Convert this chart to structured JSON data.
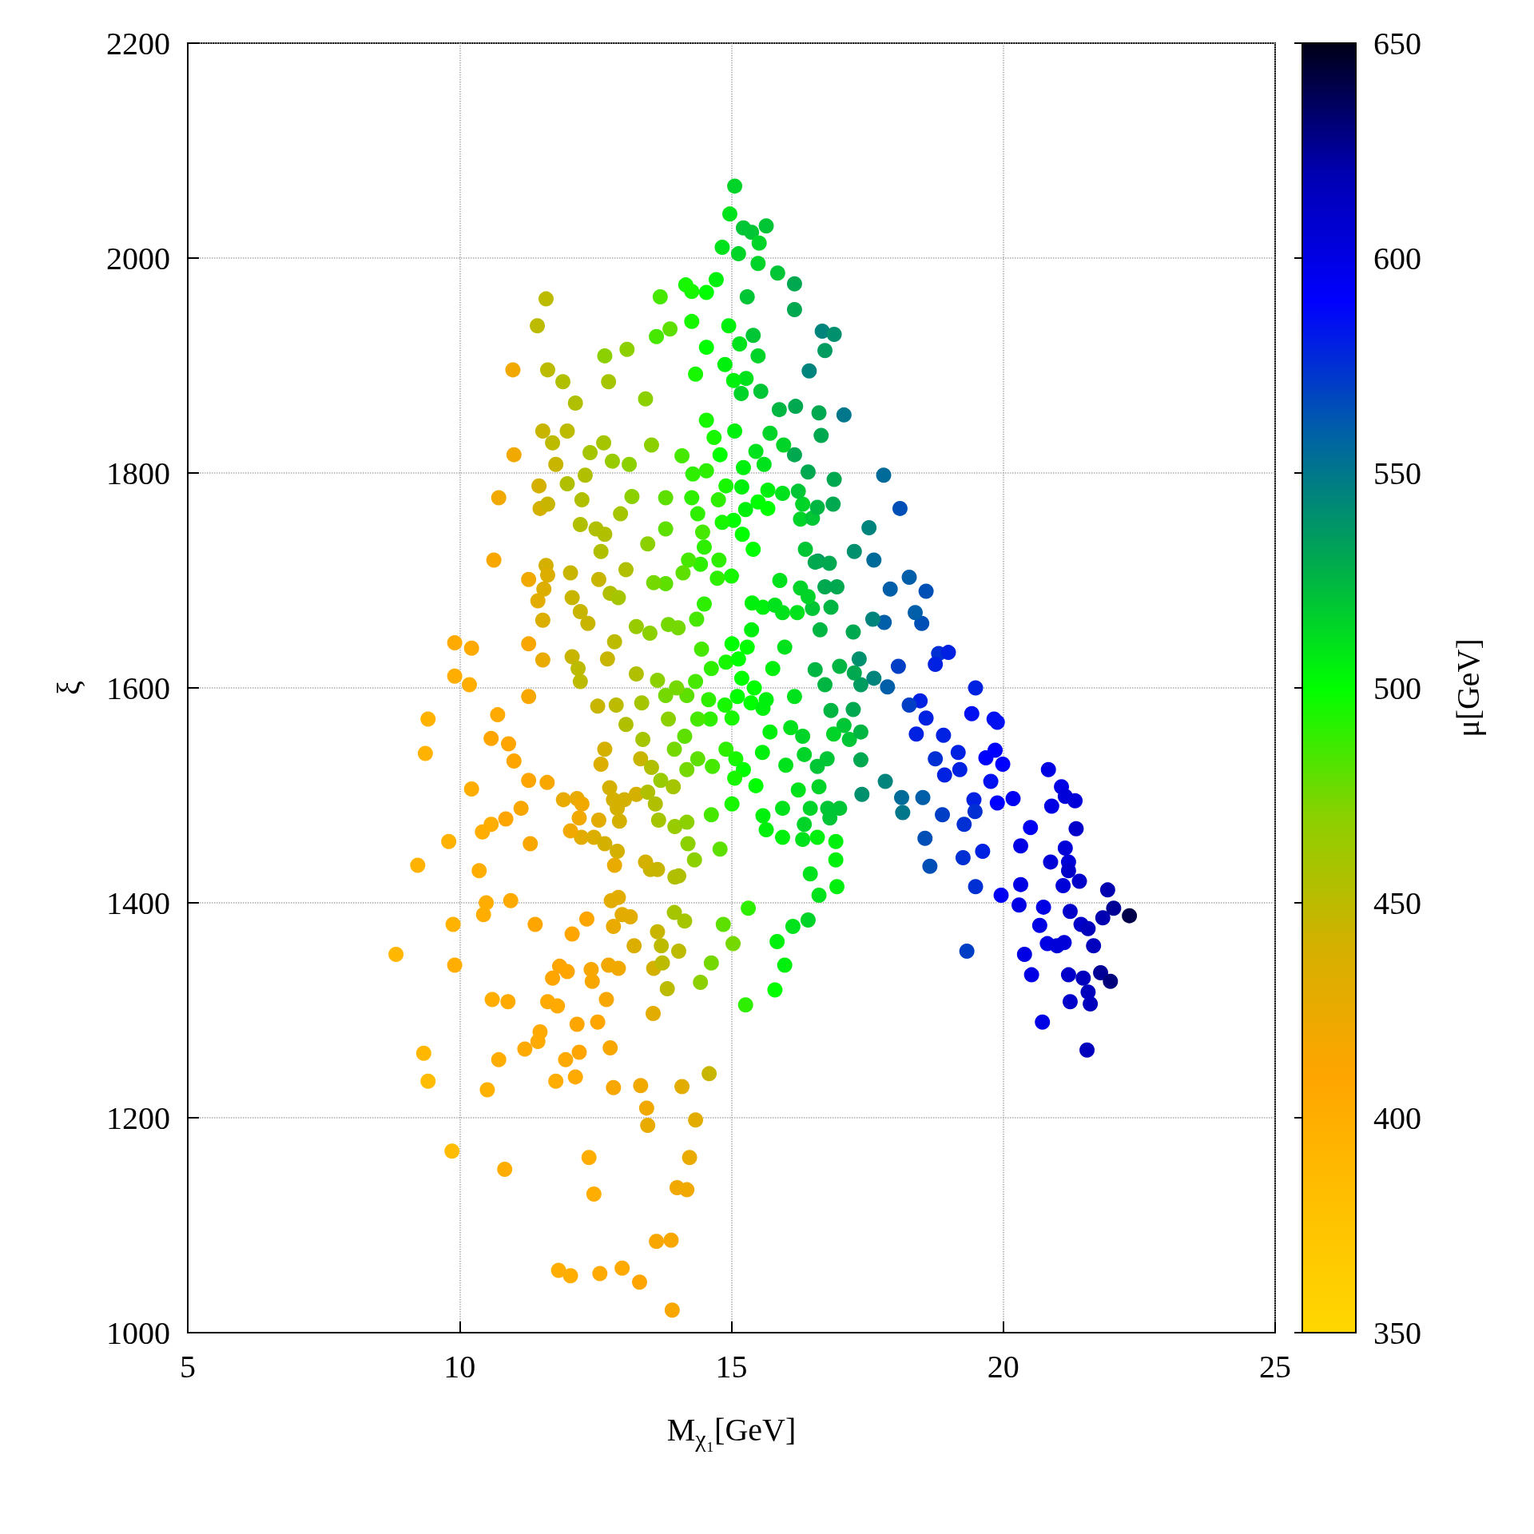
{
  "chart_data": {
    "type": "scatter",
    "xlabel": "M$_{χ₁}$[GeV]",
    "ylabel": "ξ",
    "clabel": "μ[GeV]",
    "xlim": [
      5,
      25
    ],
    "xticks": [
      5,
      10,
      15,
      20,
      25
    ],
    "ylim": [
      1000,
      2200
    ],
    "yticks": [
      1000,
      1200,
      1400,
      1600,
      1800,
      2000,
      2200
    ],
    "clim": [
      350,
      650
    ],
    "cticks": [
      350,
      400,
      450,
      500,
      550,
      600,
      650
    ],
    "grid": true,
    "marker": "circle",
    "x": [
      8.83,
      9.23,
      9.34,
      9.42,
      9.42,
      9.37,
      9.86,
      9.91,
      9.91,
      9.88,
      9.91,
      9.8,
      10.22,
      10.18,
      10.22,
      10.36,
      10.51,
      10.63,
      10.7,
      10.72,
      10.83,
      10.72,
      10.98,
      11.0,
      10.89,
      10.94,
      11.2,
      11.27,
      11.27,
      11.27,
      11.3,
      11.39,
      11.46,
      11.43,
      11.59,
      11.62,
      11.59,
      11.53,
      11.61,
      11.48,
      11.71,
      11.77,
      11.82,
      12.04,
      11.9,
      11.98,
      12.13,
      12.07,
      11.98,
      12.22,
      12.16,
      12.24,
      12.07,
      12.2,
      12.38,
      12.47,
      12.34,
      12.4,
      12.67,
      12.74,
      12.65,
      12.54,
      12.58,
      13.08,
      12.99,
      12.77,
      12.83,
      13.31,
      13.44,
      13.33,
      13.46,
      13.62,
      13.89,
      13.91,
      14.0,
      14.18,
      14.23,
      14.34,
      14.09,
      14.59,
      13.56,
      13.82,
      14.03,
      13.14,
      12.92,
      13.21,
      13.51,
      14.14,
      14.43,
      14.63,
      15.03,
      15.26,
      15.8,
      15.98,
      15.84,
      16.13,
      16.41,
      16.45,
      16.61,
      16.94,
      16.92,
      14.85,
      15.31,
      14.03,
      14.32,
      14.79,
      14.63,
      14.2,
      13.93,
      13.25,
      12.9,
      12.67,
      13.06,
      13.35,
      12.88,
      12.54,
      13.25,
      12.72,
      12.85,
      13.25,
      13.5,
      13.84,
      13.79,
      13.57,
      13.06,
      12.56,
      12.67,
      12.96,
      13.17,
      12.81,
      13.12,
      13.53,
      13.79,
      13.79,
      13.42,
      13.69,
      13.87,
      13.62,
      14.16,
      14.27,
      14.27,
      14.54,
      14.34,
      14.54,
      14.72,
      14.83,
      14.97,
      15.06,
      15.22,
      15.37,
      15.64,
      15.51,
      15.49,
      15.13,
      15.85,
      16.16,
      16.16,
      15.29,
      14.95,
      15.15,
      15.4,
      15.49,
      14.88,
      15.27,
      15.04,
      15.18,
      15.54,
      15.88,
      16.18,
      16.67,
      16.89,
      16.72,
      16.43,
      17.07,
      16.61,
      15.71,
      16.16,
      16.65,
      16.41,
      16.89,
      17.8,
      18.1,
      17.62,
      17.53,
      17.26,
      16.59,
      17.92,
      18.27,
      18.58,
      18.5,
      18.38,
      17.81,
      17.6,
      17.35,
      17.62,
      17.87,
      18.07,
      18.81,
      18.99,
      18.75,
      19.49,
      18.47,
      18.27,
      18.58,
      18.4,
      19.42,
      19.83,
      19.89,
      19.85,
      19.99,
      19.68,
      19.77,
      19.17,
      18.9,
      18.75,
      18.92,
      19.2,
      19.46,
      19.89,
      20.18,
      20.83,
      21.07,
      21.14,
      21.32,
      20.89,
      20.5,
      21.34,
      20.32,
      21.14,
      20.87,
      21.2,
      21.2,
      21.1,
      21.4,
      20.32,
      19.96,
      20.29,
      20.74,
      21.23,
      21.43,
      21.56,
      21.92,
      22.03,
      22.32,
      21.83,
      20.67,
      20.39,
      20.81,
      20.99,
      21.12,
      21.66,
      20.52,
      21.2,
      21.47,
      21.79,
      21.97,
      21.56,
      21.6,
      21.23,
      20.72,
      21.54,
      19.33,
      19.49,
      19.62,
      19.26,
      19.28,
      19.48,
      18.88,
      18.56,
      18.65,
      18.52,
      18.13,
      18.15,
      17.83,
      17.4,
      17.38,
      17.24,
      17.38,
      17.26,
      17.24,
      16.99,
      17.07,
      17.17,
      16.88,
      16.83,
      16.72,
      16.54,
      16.63,
      16.83,
      16.72,
      16.94,
      16.49,
      16.41,
      16.27,
      16.21,
      16.54,
      16.8,
      16.36,
      16.27,
      16.49,
      16.58,
      16.87,
      16.31,
      16.23,
      15.94,
      15.96,
      15.6,
      15.67,
      15.49,
      15.67,
      15.26,
      15.19,
      15.22,
      15.45,
      15.4,
      15.2,
      15.04,
      14.83,
      14.76,
      14.9,
      15.06,
      14.79,
      14.54,
      14.68,
      14.54,
      14.29,
      14.27,
      14.09,
      14.38,
      14.47,
      14.5,
      14.43,
      14.77,
      15.0,
      14.74,
      14.21,
      14.11,
      14.5,
      14.36,
      14.02,
      14.45,
      14.63,
      14.34,
      14.18,
      14.58,
      14.9,
      15.01,
      15.29,
      15.13,
      15.37,
      15.58,
      15.8,
      15.38,
      15.94,
      15.89,
      15.98,
      15.76,
      15.42,
      15.19,
      15.36,
      15.58,
      15.11,
      14.88,
      15.01,
      14.61,
      14.38,
      13.99,
      13.79,
      13.64,
      13.37,
      13.84,
      13.95,
      14.14,
      14.38,
      14.18,
      13.7,
      13.46,
      13.66,
      13.96,
      14.18,
      14.65,
      14.9,
      15.08,
      15.22,
      15.45,
      15.06,
      15.01,
      15.57,
      15.71,
      15.64,
      16.09,
      16.16,
      16.31,
      16.34,
      16.23,
      15.94,
      15.94,
      15.58,
      15.64,
      16.34,
      16.45,
      16.61,
      16.77,
      16.81,
      16.99,
      16.76,
      16.58,
      16.92,
      16.58,
      16.31,
      16.0,
      17.38,
      10.49,
      10.44,
      10.6,
      10.58,
      10.42,
      10.85,
      10.9,
      11.0,
      10.58,
      11.13,
      11.27,
      11.53,
      11.44,
      11.55,
      11.62,
      11.48,
      11.62,
      11.77,
      11.71,
      11.53,
      12.31,
      12.25,
      12.22,
      12.04,
      12.07,
      12.22,
      12.36,
      12.18,
      12.51,
      12.6,
      12.77,
      12.92,
      11.91,
      12.25,
      12.2,
      12.04,
      12.47,
      12.67,
      12.9,
      12.85,
      12.6,
      12.76,
      12.83,
      13.03,
      12.94,
      12.56,
      12.79,
      12.92,
      12.99,
      12.83,
      12.74,
      12.42,
      12.44,
      11.98,
      11.84,
      11.62,
      11.8,
      12.16,
      12.13,
      11.95,
      11.44,
      12.7,
      13.42,
      13.64,
      13.57,
      13.73,
      13.64,
      13.71,
      13.95,
      13.96,
      13.33,
      13.53,
      13.6,
      13.46
    ],
    "values": [
      1352,
      1435,
      1260,
      1234,
      1571,
      1539,
      1169,
      1642,
      1611,
      1380,
      1342,
      1457,
      1637,
      1603,
      1506,
      1430,
      1226,
      1719,
      1575,
      1254,
      1152,
      1777,
      1896,
      1817,
      1308,
      1402,
      1264,
      1701,
      1641,
      1514,
      1455,
      1380,
      1788,
      1937,
      1962,
      1896,
      1714,
      1626,
      1512,
      1280,
      1330,
      1234,
      1058,
      1053,
      1885,
      1839,
      1865,
      1629,
      1790,
      1606,
      1497,
      1461,
      1371,
      1261,
      1163,
      1129,
      1385,
      1819,
      1909,
      1885,
      1828,
      1289,
      1055,
      1915,
      1060,
      1265,
      1228,
      1047,
      1209,
      1230,
      1193,
      1085,
      1086,
      1021,
      1135,
      1133,
      1163,
      1198,
      1229,
      1241,
      1297,
      1320,
      1355,
      1387,
      1339,
      1360,
      1431,
      1383,
      1326,
      1344,
      1362,
      1305,
      1319,
      1342,
      1364,
      1378,
      1384,
      1427,
      1407,
      1415,
      1440,
      1380,
      1395,
      1425,
      1440,
      1450,
      1482,
      1455,
      1508,
      1501,
      1488,
      1543,
      1566,
      1586,
      1584,
      1583,
      1613,
      1627,
      1643,
      1657,
      1651,
      1659,
      1697,
      1698,
      1710,
      1701,
      1743,
      1762,
      1778,
      1811,
      1808,
      1826,
      1777,
      1748,
      1869,
      1964,
      1934,
      1927,
      1975,
      1969,
      1941,
      1968,
      1892,
      1917,
      1980,
      2010,
      2041,
      2067,
      2028,
      2024,
      2030,
      2014,
      1995,
      2004,
      1986,
      1976,
      1952,
      1964,
      1937,
      1920,
      1928,
      1909,
      1901,
      1888,
      1886,
      1874,
      1876,
      1859,
      1862,
      1932,
      1929,
      1914,
      1895,
      1854,
      1856,
      1837,
      1817,
      1835,
      1801,
      1794,
      1798,
      1767,
      1719,
      1749,
      1727,
      1718,
      1692,
      1703,
      1690,
      1660,
      1670,
      1661,
      1664,
      1627,
      1609,
      1601,
      1620,
      1632,
      1633,
      1622,
      1600,
      1588,
      1584,
      1572,
      1557,
      1576,
      1571,
      1568,
      1542,
      1529,
      1535,
      1513,
      1540,
      1556,
      1534,
      1519,
      1524,
      1496,
      1493,
      1497,
      1524,
      1508,
      1499,
      1495,
      1490,
      1470,
      1469,
      1453,
      1451,
      1438,
      1438,
      1430,
      1416,
      1420,
      1417,
      1407,
      1398,
      1396,
      1392,
      1380,
      1376,
      1412,
      1395,
      1388,
      1386,
      1379,
      1352,
      1362,
      1360,
      1363,
      1360,
      1333,
      1333,
      1330,
      1335,
      1327,
      1317,
      1306,
      1308,
      1289,
      1263,
      1355,
      1415,
      1448,
      1442,
      1473,
      1485,
      1482,
      1460,
      1434,
      1498,
      1498,
      1484,
      1513,
      1501,
      1533,
      1580,
      1603,
      1614,
      1652,
      1620,
      1565,
      1552,
      1557,
      1579,
      1603,
      1617,
      1654,
      1675,
      1694,
      1694,
      1674,
      1685,
      1693,
      1670,
      1717,
      1716,
      1729,
      1757,
      1758,
      1768,
      1771,
      1771,
      1783,
      1781,
      1826,
      1808,
      1784,
      1773,
      1767,
      1766,
      1787,
      1805,
      1820,
      1729,
      1743,
      1756,
      1754,
      1775,
      1788,
      1839,
      1817,
      1849,
      1833,
      1802,
      1799,
      1777,
      1816,
      1762,
      1745,
      1731,
      1715,
      1719,
      1704,
      1702,
      1719,
      1707,
      1678,
      1664,
      1656,
      1636,
      1618,
      1606,
      1593,
      1589,
      1624,
      1641,
      1638,
      1627,
      1654,
      1675,
      1677,
      1679,
      1670,
      1700,
      1638,
      1618,
      1600,
      1609,
      1586,
      1581,
      1592,
      1584,
      1572,
      1571,
      1571,
      1600,
      1593,
      1607,
      1552,
      1571,
      1543,
      1555,
      1534,
      1524,
      1514,
      1503,
      1477,
      1471,
      1475,
      1527,
      1543,
      1534,
      1524,
      1509,
      1516,
      1492,
      1540,
      1559,
      1589,
      1563,
      1592,
      1555,
      1538,
      1505,
      1488,
      1461,
      1481,
      1468,
      1473,
      1488,
      1508,
      1488,
      1479,
      1488,
      1534,
      1527,
      1457,
      1461,
      1459,
      1528,
      1559,
      1400,
      1389,
      1310,
      1473,
      1466,
      1478,
      1548,
      1532,
      1553,
      1488,
      1592,
      1663,
      1681,
      1692,
      1705,
      1767,
      1771,
      1808,
      1828,
      1839,
      1798,
      1775,
      1752,
      1707,
      1684,
      1671,
      1660,
      1618,
      1748,
      1727,
      1688,
      1684,
      1496,
      1492,
      1479,
      1467,
      1461,
      1455,
      1448,
      1435,
      1529,
      1507,
      1496,
      1496,
      1476,
      1477,
      1402,
      1405,
      1389,
      1378,
      1342,
      1338,
      1327,
      1336,
      1341,
      1308,
      1304,
      1287,
      1238,
      1254,
      1271,
      1310,
      1438,
      1431,
      1339,
      1344,
      1373,
      1360,
      1391,
      1424,
      1534,
      1526,
      1492,
      1734
    ],
    "cvalues": [
      390,
      395,
      390,
      385,
      395,
      395,
      385,
      405,
      400,
      395,
      400,
      395,
      405,
      400,
      400,
      400,
      395,
      415,
      405,
      400,
      400,
      420,
      420,
      420,
      405,
      405,
      405,
      420,
      415,
      410,
      415,
      410,
      440,
      450,
      450,
      450,
      440,
      425,
      415,
      405,
      410,
      400,
      400,
      400,
      455,
      450,
      455,
      445,
      455,
      450,
      425,
      430,
      410,
      410,
      400,
      400,
      410,
      460,
      470,
      460,
      460,
      410,
      405,
      470,
      405,
      415,
      415,
      410,
      420,
      420,
      425,
      415,
      415,
      415,
      420,
      420,
      425,
      430,
      430,
      445,
      430,
      450,
      450,
      430,
      420,
      435,
      445,
      460,
      470,
      475,
      475,
      490,
      500,
      505,
      505,
      510,
      515,
      510,
      510,
      505,
      505,
      480,
      490,
      455,
      470,
      480,
      485,
      470,
      460,
      440,
      440,
      440,
      455,
      460,
      450,
      445,
      455,
      445,
      450,
      465,
      470,
      475,
      480,
      475,
      455,
      445,
      455,
      460,
      470,
      465,
      470,
      470,
      480,
      480,
      470,
      485,
      480,
      485,
      495,
      495,
      495,
      500,
      495,
      500,
      505,
      510,
      510,
      515,
      520,
      520,
      520,
      515,
      515,
      515,
      520,
      530,
      530,
      520,
      505,
      510,
      520,
      515,
      505,
      510,
      505,
      515,
      520,
      525,
      530,
      545,
      540,
      535,
      545,
      550,
      530,
      515,
      530,
      530,
      530,
      530,
      555,
      565,
      555,
      545,
      540,
      535,
      560,
      560,
      565,
      565,
      560,
      560,
      545,
      540,
      545,
      560,
      570,
      575,
      580,
      580,
      580,
      580,
      570,
      580,
      580,
      585,
      585,
      585,
      590,
      590,
      590,
      585,
      580,
      580,
      575,
      580,
      580,
      580,
      590,
      595,
      600,
      600,
      605,
      605,
      600,
      595,
      610,
      600,
      605,
      605,
      605,
      610,
      605,
      610,
      600,
      595,
      600,
      600,
      610,
      610,
      615,
      620,
      625,
      640,
      620,
      600,
      600,
      600,
      605,
      605,
      615,
      600,
      610,
      615,
      625,
      630,
      615,
      615,
      610,
      600,
      615,
      570,
      575,
      580,
      575,
      575,
      575,
      570,
      565,
      565,
      560,
      555,
      550,
      545,
      540,
      530,
      530,
      535,
      530,
      530,
      525,
      520,
      520,
      515,
      525,
      525,
      525,
      525,
      525,
      530,
      530,
      520,
      515,
      515,
      510,
      530,
      530,
      520,
      515,
      520,
      525,
      530,
      515,
      520,
      510,
      515,
      510,
      505,
      500,
      500,
      505,
      505,
      505,
      510,
      500,
      500,
      500,
      495,
      490,
      495,
      505,
      500,
      495,
      495,
      490,
      490,
      490,
      485,
      490,
      485,
      490,
      490,
      490,
      495,
      490,
      485,
      480,
      490,
      485,
      475,
      485,
      490,
      485,
      480,
      490,
      495,
      500,
      500,
      500,
      505,
      505,
      510,
      505,
      510,
      510,
      510,
      505,
      500,
      500,
      500,
      505,
      500,
      495,
      495,
      490,
      485,
      475,
      475,
      470,
      460,
      470,
      475,
      480,
      480,
      475,
      465,
      455,
      460,
      465,
      470,
      485,
      490,
      495,
      500,
      500,
      495,
      495,
      505,
      505,
      505,
      510,
      510,
      515,
      515,
      510,
      510,
      505,
      505,
      505,
      515,
      515,
      515,
      520,
      520,
      520,
      520,
      520,
      505,
      505,
      510,
      510,
      525,
      400,
      400,
      400,
      400,
      400,
      410,
      410,
      410,
      410,
      415,
      415,
      435,
      430,
      435,
      435,
      440,
      445,
      445,
      450,
      445,
      455,
      455,
      455,
      445,
      445,
      445,
      445,
      450,
      455,
      455,
      455,
      460,
      425,
      420,
      420,
      420,
      435,
      440,
      440,
      425,
      435,
      440,
      440,
      440,
      440,
      430,
      430,
      430,
      430,
      425,
      420,
      415,
      415,
      410,
      410,
      405,
      405,
      410,
      405,
      405,
      405,
      415,
      440,
      445,
      440,
      450,
      445,
      450,
      460,
      455,
      445,
      455,
      455,
      470
    ]
  }
}
